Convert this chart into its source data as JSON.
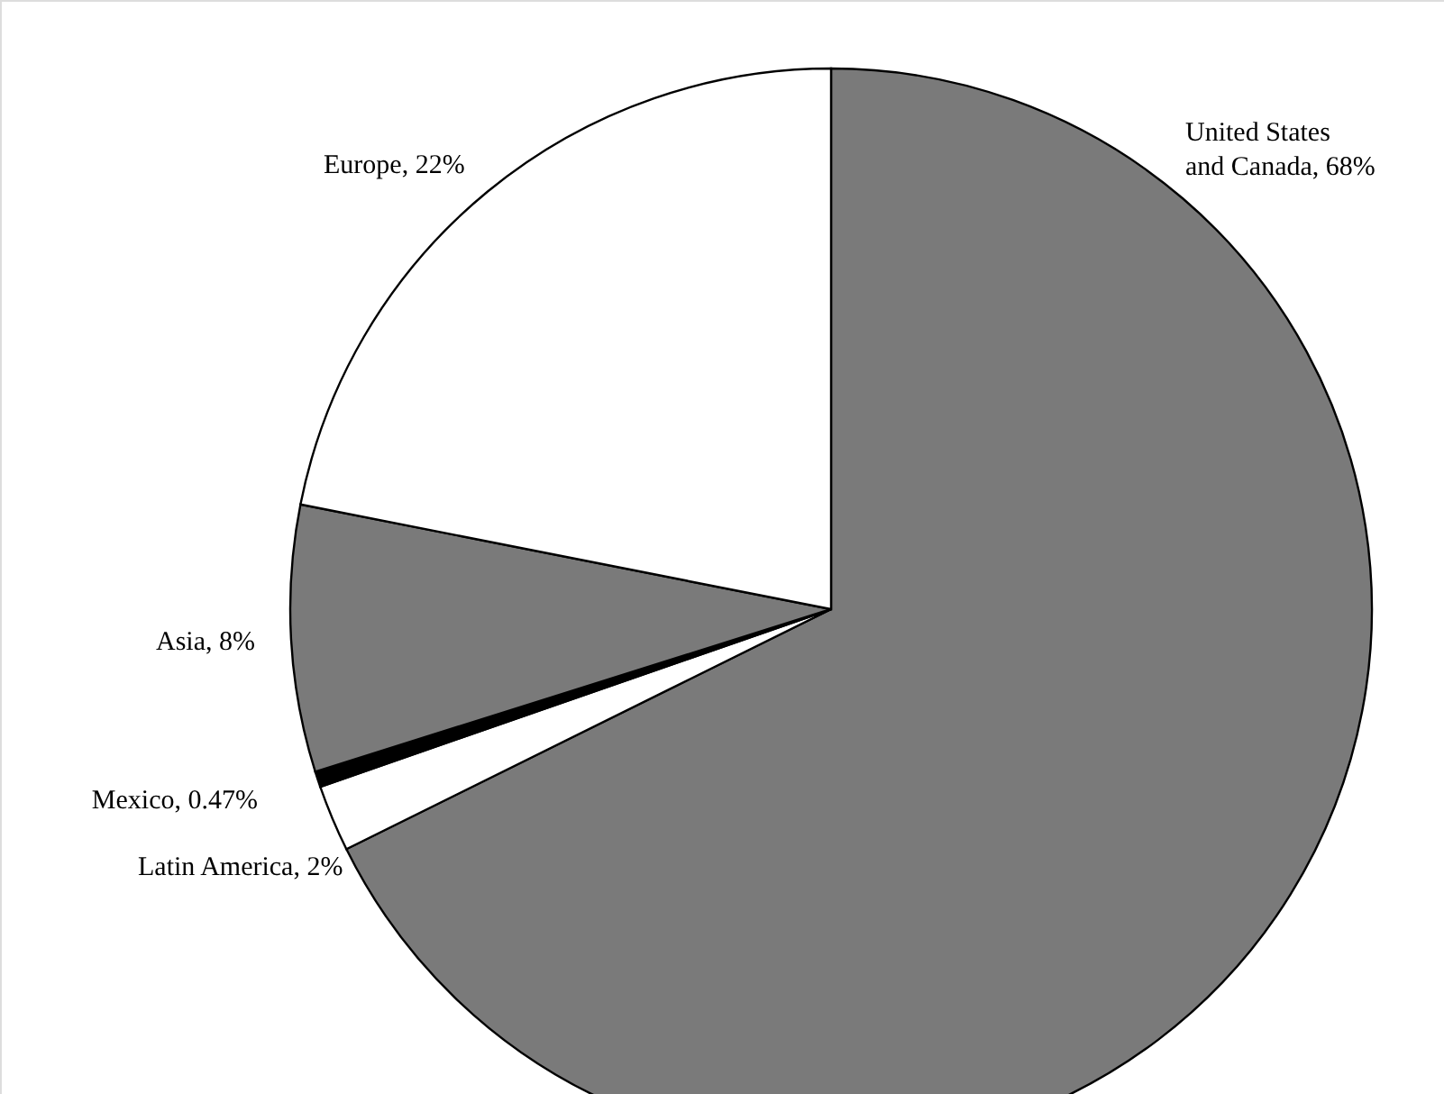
{
  "chart_data": {
    "type": "pie",
    "categories": [
      "United States and Canada",
      "Latin America",
      "Mexico",
      "Asia",
      "Europe"
    ],
    "values": [
      68,
      2,
      0.47,
      8,
      22
    ],
    "value_labels": [
      "68%",
      "2%",
      "0.47%",
      "8%",
      "22%"
    ],
    "colors": [
      "#7a7a7a",
      "#ffffff",
      "#000000",
      "#7a7a7a",
      "#ffffff"
    ]
  }
}
